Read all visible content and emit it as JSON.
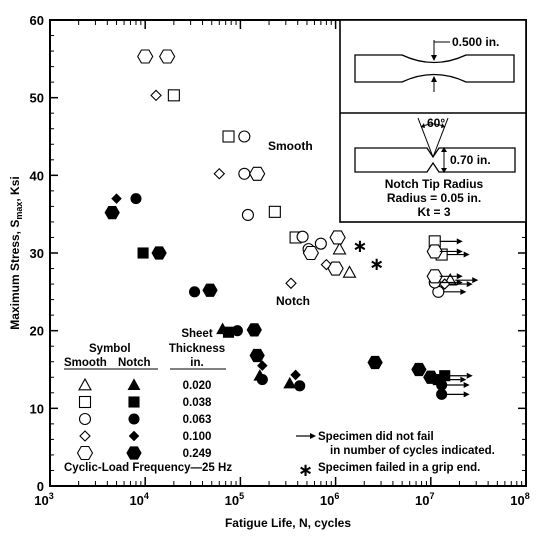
{
  "chart_data": {
    "type": "scatter",
    "xscale": "log",
    "xlim": [
      1000,
      100000000
    ],
    "ylim": [
      0,
      60
    ],
    "xlabel": "Fatigue Life, N, cycles",
    "ylabel": "Maximum Stress, Smax, Ksi",
    "ylabel_parts": {
      "main": "Maximum Stress, S",
      "sub": "max",
      "unit": ", Ksi"
    },
    "x_ticks": [
      {
        "value": 1000,
        "base": "10",
        "exp": "3"
      },
      {
        "value": 10000,
        "base": "10",
        "exp": "4"
      },
      {
        "value": 100000,
        "base": "10",
        "exp": "5"
      },
      {
        "value": 1000000,
        "base": "10",
        "exp": "6"
      },
      {
        "value": 10000000,
        "base": "10",
        "exp": "7"
      },
      {
        "value": 100000000,
        "base": "10",
        "exp": "8"
      }
    ],
    "y_ticks": [
      0,
      10,
      20,
      30,
      40,
      50,
      60
    ],
    "annotations": {
      "smooth": "Smooth",
      "notch": "Notch"
    },
    "series": [
      {
        "name": "0.020",
        "symbol": "triangle",
        "condition": "smooth",
        "points": [
          {
            "x": 1400000,
            "y": 27.5
          },
          {
            "x": 1100000,
            "y": 30.5
          },
          {
            "x": 16000000,
            "y": 26.5,
            "runout": true
          }
        ]
      },
      {
        "name": "0.038",
        "symbol": "square",
        "condition": "smooth",
        "points": [
          {
            "x": 20000,
            "y": 50.3
          },
          {
            "x": 75000,
            "y": 45
          },
          {
            "x": 230000,
            "y": 35.3
          },
          {
            "x": 380000,
            "y": 32
          },
          {
            "x": 11000000,
            "y": 31.5,
            "runout": true
          },
          {
            "x": 13000000,
            "y": 29.8,
            "runout": true
          }
        ]
      },
      {
        "name": "0.063",
        "symbol": "circle",
        "condition": "smooth",
        "points": [
          {
            "x": 110000,
            "y": 45
          },
          {
            "x": 110000,
            "y": 40.2
          },
          {
            "x": 120000,
            "y": 34.9
          },
          {
            "x": 450000,
            "y": 32.1
          },
          {
            "x": 700000,
            "y": 31.2
          },
          {
            "x": 520000,
            "y": 30.5
          },
          {
            "x": 12000000,
            "y": 25,
            "runout": true
          },
          {
            "x": 11000000,
            "y": 26.2,
            "runout": true
          }
        ]
      },
      {
        "name": "0.100",
        "symbol": "diamond",
        "condition": "smooth",
        "points": [
          {
            "x": 13000,
            "y": 50.3
          },
          {
            "x": 60000,
            "y": 40.2
          },
          {
            "x": 340000,
            "y": 26.1
          },
          {
            "x": 800000,
            "y": 28.5
          },
          {
            "x": 14000000,
            "y": 26,
            "runout": true
          }
        ]
      },
      {
        "name": "0.249",
        "symbol": "hexagon",
        "condition": "smooth",
        "points": [
          {
            "x": 10000,
            "y": 55.3
          },
          {
            "x": 17000,
            "y": 55.3
          },
          {
            "x": 150000,
            "y": 40.2
          },
          {
            "x": 550000,
            "y": 30
          },
          {
            "x": 1000000,
            "y": 28
          },
          {
            "x": 1050000,
            "y": 32
          },
          {
            "x": 11000000,
            "y": 30.2,
            "runout": true
          },
          {
            "x": 11000000,
            "y": 27,
            "runout": true
          }
        ]
      },
      {
        "name": "0.020",
        "symbol": "triangle",
        "condition": "notch",
        "points": [
          {
            "x": 65000,
            "y": 20.2
          },
          {
            "x": 160000,
            "y": 14.2
          },
          {
            "x": 330000,
            "y": 13.2
          }
        ]
      },
      {
        "name": "0.038",
        "symbol": "square",
        "condition": "notch",
        "points": [
          {
            "x": 9500,
            "y": 30
          },
          {
            "x": 75000,
            "y": 19.8
          },
          {
            "x": 14000000,
            "y": 14.2,
            "runout": true
          },
          {
            "x": 12000000,
            "y": 13.7,
            "runout": true
          }
        ]
      },
      {
        "name": "0.063",
        "symbol": "circle",
        "condition": "notch",
        "points": [
          {
            "x": 8000,
            "y": 37
          },
          {
            "x": 33000,
            "y": 25
          },
          {
            "x": 93000,
            "y": 20
          },
          {
            "x": 170000,
            "y": 13.7
          },
          {
            "x": 420000,
            "y": 12.9
          },
          {
            "x": 13000000,
            "y": 13,
            "runout": true
          },
          {
            "x": 13000000,
            "y": 11.8,
            "runout": true
          }
        ]
      },
      {
        "name": "0.100",
        "symbol": "diamond",
        "condition": "notch",
        "points": [
          {
            "x": 5000,
            "y": 37
          },
          {
            "x": 380000,
            "y": 14.3
          },
          {
            "x": 170000,
            "y": 15.5
          }
        ]
      },
      {
        "name": "0.249",
        "symbol": "hexagon",
        "condition": "notch",
        "points": [
          {
            "x": 4500,
            "y": 35.2
          },
          {
            "x": 14000,
            "y": 30
          },
          {
            "x": 48000,
            "y": 25.2
          },
          {
            "x": 140000,
            "y": 20.1
          },
          {
            "x": 150000,
            "y": 16.8
          },
          {
            "x": 2600000,
            "y": 15.9
          },
          {
            "x": 7500000,
            "y": 15
          },
          {
            "x": 10000000,
            "y": 14
          }
        ]
      }
    ],
    "grip_failures": [
      {
        "x": 1800000,
        "y": 30.9
      },
      {
        "x": 2700000,
        "y": 28.6
      }
    ],
    "legend": {
      "header_symbol": "Symbol",
      "header_smooth": "Smooth",
      "header_notch": "Notch",
      "header_sheet": "Sheet",
      "header_thickness": "Thickness",
      "header_unit": "in.",
      "rows": [
        {
          "thickness": "0.020",
          "symbol": "triangle"
        },
        {
          "thickness": "0.038",
          "symbol": "square"
        },
        {
          "thickness": "0.063",
          "symbol": "circle"
        },
        {
          "thickness": "0.100",
          "symbol": "diamond"
        },
        {
          "thickness": "0.249",
          "symbol": "hexagon"
        }
      ],
      "frequency": "Cyclic-Load Frequency—25 Hz"
    },
    "notes": {
      "runout_line1": "Specimen did not fail",
      "runout_line2": "in number of cycles indicated.",
      "grip_symbol": "∗",
      "grip_text": "Specimen failed in a grip end."
    },
    "inset": {
      "smooth_dim": "0.500 in.",
      "notch_angle": "60°",
      "notch_depth": "0.70 in.",
      "notch_line1": "Notch Tip Radius",
      "notch_line2": "Radius = 0.05 in.",
      "notch_line3": "Kt = 3"
    }
  }
}
